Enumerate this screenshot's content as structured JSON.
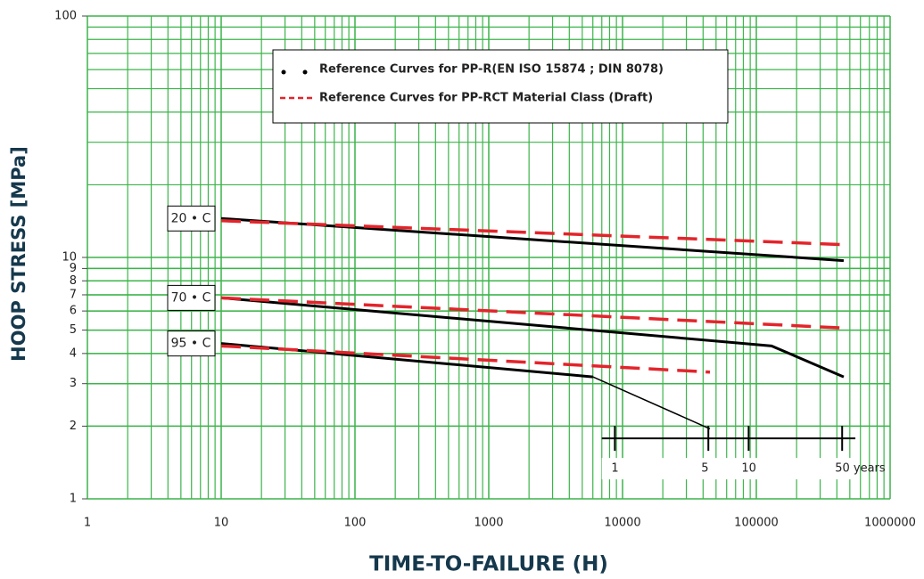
{
  "chart_data": {
    "type": "line",
    "xlabel": "TIME-TO-FAILURE (H)",
    "ylabel": "HOOP STRESS [MPa]",
    "xscale": "log",
    "yscale": "log",
    "xlim": [
      1,
      1000000
    ],
    "ylim": [
      1,
      100
    ],
    "xticks": [
      1,
      10,
      100,
      1000,
      10000,
      100000,
      1000000
    ],
    "yticks": [
      1,
      2,
      3,
      4,
      5,
      6,
      7,
      8,
      9,
      10,
      100
    ],
    "grid": true,
    "minor_grid": true,
    "grid_color": "#3cb44a",
    "legend": [
      {
        "label": "Reference Curves for PP-R(EN ISO 15874 ; DIN 8078)",
        "color": "#000000",
        "style": "dotted"
      },
      {
        "label": "Reference Curves for PP-RCT Material Class (Draft)",
        "color": "#e3242b",
        "style": "dashed"
      }
    ],
    "series": [
      {
        "label": "20 • C",
        "color": "#000000",
        "dash": false,
        "width": 3,
        "x": [
          10,
          450000
        ],
        "values": [
          14.5,
          9.7
        ]
      },
      {
        "color": "#e3242b",
        "dash": true,
        "width": 3.5,
        "x": [
          10,
          450000
        ],
        "values": [
          14.2,
          11.3
        ]
      },
      {
        "label": "70 • C",
        "color": "#000000",
        "dash": false,
        "width": 3,
        "x": [
          10,
          130000,
          450000
        ],
        "values": [
          6.8,
          4.3,
          3.2
        ]
      },
      {
        "color": "#e3242b",
        "dash": true,
        "width": 3.5,
        "x": [
          10,
          450000
        ],
        "values": [
          6.8,
          5.1
        ]
      },
      {
        "label": "95 • C",
        "color": "#000000",
        "dash": false,
        "width": 3,
        "x": [
          10,
          6000
        ],
        "values": [
          4.4,
          3.2
        ]
      },
      {
        "color": "#000000",
        "dash": false,
        "width": 1.5,
        "x": [
          6000,
          45000
        ],
        "values": [
          3.2,
          1.95
        ]
      },
      {
        "color": "#e3242b",
        "dash": true,
        "width": 3.5,
        "x": [
          10,
          45000
        ],
        "values": [
          4.3,
          3.35
        ]
      }
    ],
    "year_scale": {
      "y": 1.78,
      "xlim": [
        7000,
        550000
      ],
      "ticks": [
        {
          "value": 8760,
          "label": "1"
        },
        {
          "value": 43800,
          "label": "5"
        },
        {
          "value": 87600,
          "label": "10"
        },
        {
          "value": 438000,
          "label": "50 years"
        }
      ]
    }
  }
}
